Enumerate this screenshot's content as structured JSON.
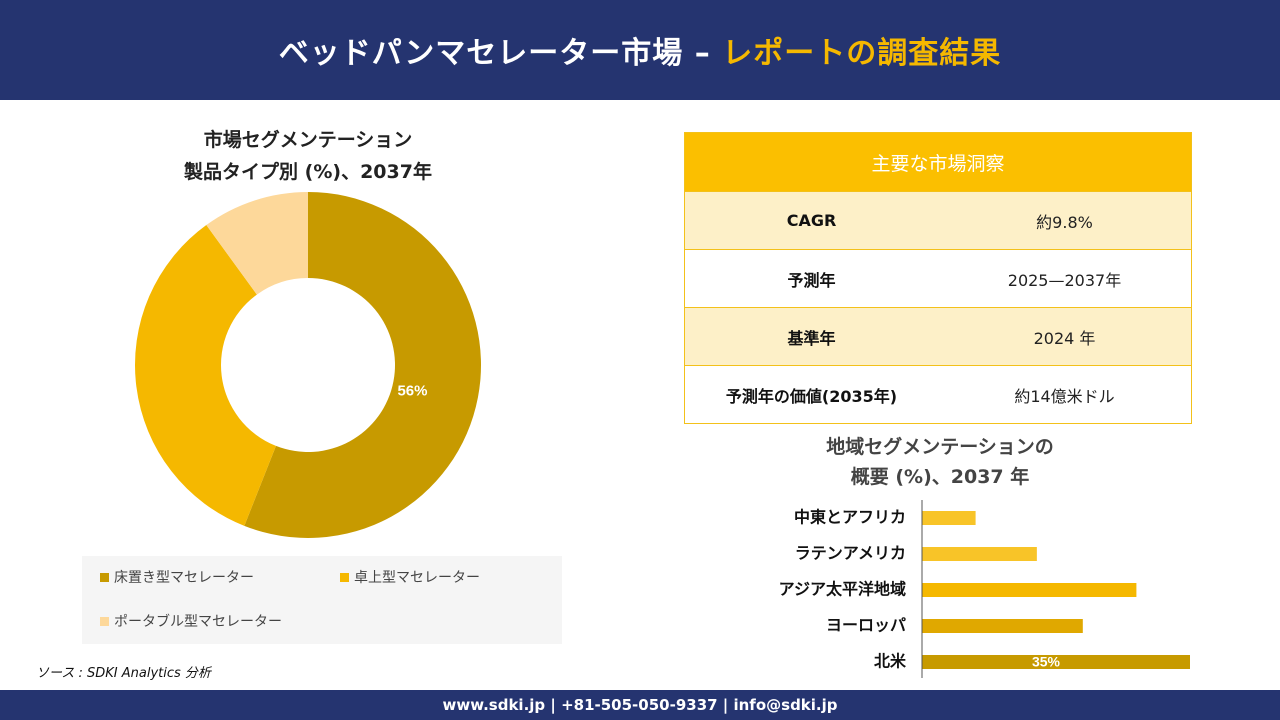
{
  "header": {
    "title_main": "ベッドパンマセレーター市場 –",
    "title_accent": "レポートの調査結果"
  },
  "colors": {
    "navy": "#253470",
    "accent": "#f5b800",
    "donut": [
      "#c79a00",
      "#f5b800",
      "#fdd89a"
    ],
    "bars": [
      "#f8c428",
      "#f8c428",
      "#f5b800",
      "#e0a800",
      "#c79a00"
    ]
  },
  "donut": {
    "title_line1": "市場セグメンテーション",
    "title_line2": "製品タイプ別 (%)、2037年"
  },
  "legend": {
    "items": [
      {
        "label": "床置き型マセレーター",
        "color": "#c79a00"
      },
      {
        "label": "卓上型マセレーター",
        "color": "#f5b800"
      },
      {
        "label": "ポータブル型マセレーター",
        "color": "#fdd89a"
      }
    ]
  },
  "source": "ソース : SDKI Analytics 分析",
  "insights": {
    "heading": "主要な市場洞察",
    "rows": [
      {
        "key": "CAGR",
        "value": "約9.8%"
      },
      {
        "key": "予測年",
        "value": "2025—2037年"
      },
      {
        "key": "基準年",
        "value": "2024 年"
      },
      {
        "key": "予測年の価値(2035年)",
        "value": "約14億米ドル"
      }
    ]
  },
  "bar": {
    "title_line1": "地域セグメンテーションの",
    "title_line2": "概要 (%)、2037 年"
  },
  "footer": {
    "text": "www.sdki.jp | +81-505-050-9337 | info@sdki.jp"
  },
  "chart_data": [
    {
      "type": "pie",
      "title": "市場セグメンテーション 製品タイプ別 (%)、2037年",
      "categories": [
        "床置き型マセレーター",
        "卓上型マセレーター",
        "ポータブル型マセレーター"
      ],
      "values": [
        56,
        34,
        10
      ],
      "data_labels": [
        "56%",
        "",
        ""
      ]
    },
    {
      "type": "bar",
      "orientation": "horizontal",
      "title": "地域セグメンテーションの概要 (%)、2037 年",
      "categories": [
        "中東とアフリカ",
        "ラテンアメリカ",
        "アジア太平洋地域",
        "ヨーロッパ",
        "北米"
      ],
      "values": [
        7,
        15,
        28,
        21,
        35
      ],
      "data_labels": [
        "",
        "",
        "",
        "",
        "35%"
      ]
    }
  ]
}
